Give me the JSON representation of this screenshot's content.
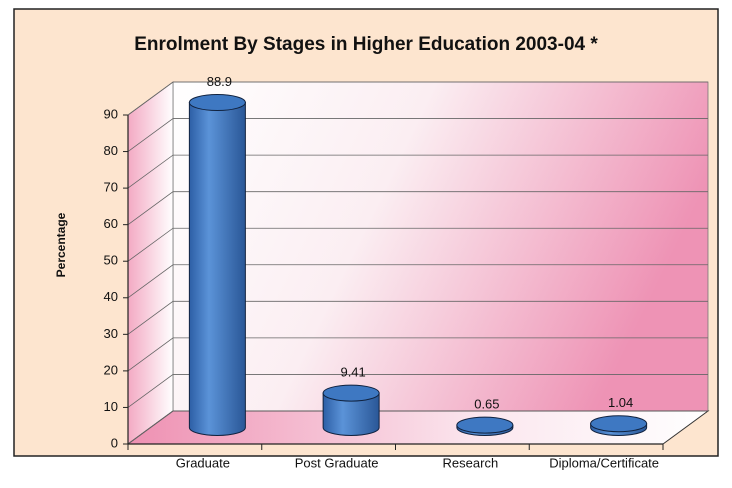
{
  "chart_data": {
    "type": "bar",
    "title": "Enrolment By Stages in Higher Education 2003-04 *",
    "y_label": "Percentage",
    "categories": [
      "Graduate",
      "Post Graduate",
      "Research",
      "Diploma/Certificate"
    ],
    "values": [
      88.9,
      9.41,
      0.65,
      1.04
    ],
    "color": "#3e78c2",
    "ylim": [
      0,
      90
    ],
    "yticks": [
      0,
      10,
      20,
      30,
      40,
      50,
      60,
      70,
      80,
      90
    ],
    "grid": true
  }
}
